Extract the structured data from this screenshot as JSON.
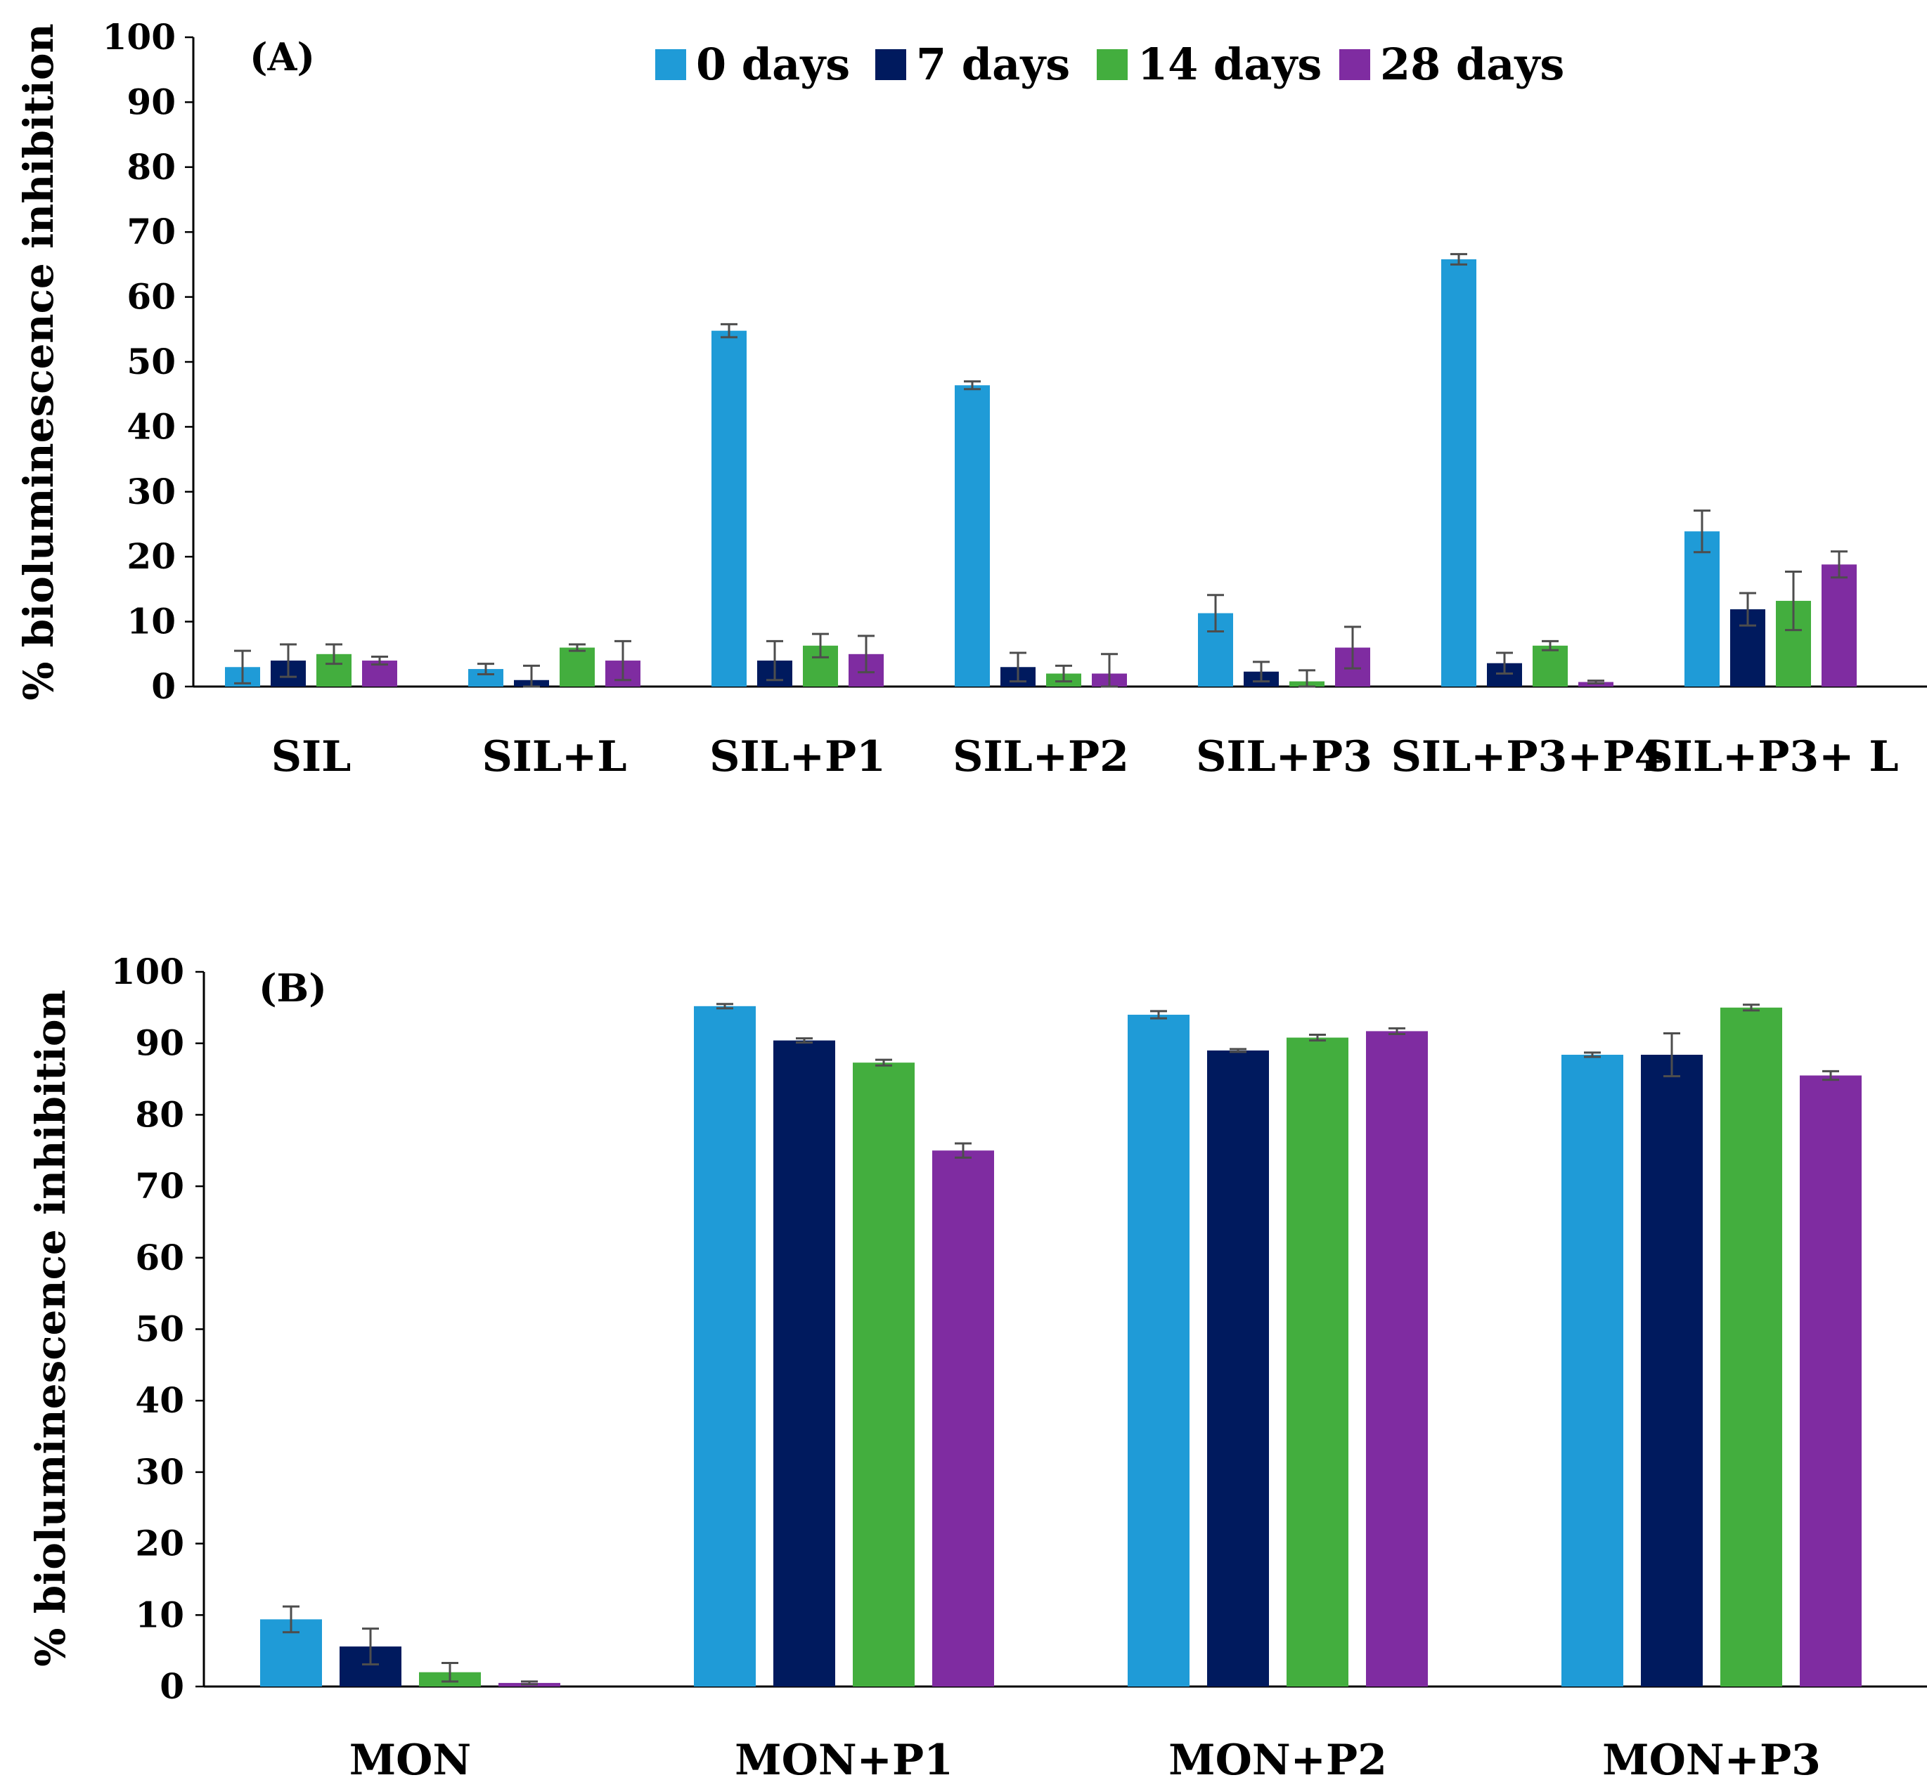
{
  "legend": {
    "series": [
      {
        "name": "0 days",
        "color": "#1F9BD7"
      },
      {
        "name": "7 days",
        "color": "#001A5E"
      },
      {
        "name": "14 days",
        "color": "#43AE3E"
      },
      {
        "name": "28 days",
        "color": "#7F2CA1"
      }
    ]
  },
  "chart_data": [
    {
      "type": "bar",
      "title": "(A)",
      "ylabel": "% bioluminescence inhibition",
      "xlabel": "",
      "ylim": [
        0,
        100
      ],
      "yticks": [
        0,
        10,
        20,
        30,
        40,
        50,
        60,
        70,
        80,
        90,
        100
      ],
      "categories": [
        "SIL",
        "SIL+L",
        "SIL+P1",
        "SIL+P2",
        "SIL+P3",
        "SIL+P3+P4",
        "SIL+P3+ L"
      ],
      "series": [
        {
          "name": "0 days",
          "values": [
            3.0,
            2.7,
            54.8,
            46.4,
            11.3,
            65.8,
            23.9
          ],
          "errors": [
            2.5,
            0.8,
            1.0,
            0.6,
            2.8,
            0.8,
            3.2
          ]
        },
        {
          "name": "7 days",
          "values": [
            4.0,
            1.0,
            4.0,
            3.0,
            2.3,
            3.6,
            11.9
          ],
          "errors": [
            2.5,
            2.2,
            3.0,
            2.2,
            1.5,
            1.6,
            2.5
          ]
        },
        {
          "name": "14 days",
          "values": [
            5.0,
            6.0,
            6.3,
            2.0,
            0.8,
            6.3,
            13.2
          ],
          "errors": [
            1.5,
            0.5,
            1.8,
            1.2,
            1.7,
            0.7,
            4.5
          ]
        },
        {
          "name": "28 days",
          "values": [
            4.0,
            4.0,
            5.0,
            2.0,
            6.0,
            0.7,
            18.8
          ],
          "errors": [
            0.6,
            3.0,
            2.8,
            3.0,
            3.2,
            0.2,
            2.0
          ]
        }
      ]
    },
    {
      "type": "bar",
      "title": "(B)",
      "ylabel": "% bioluminescence inhibition",
      "xlabel": "",
      "ylim": [
        0,
        100
      ],
      "yticks": [
        0,
        10,
        20,
        30,
        40,
        50,
        60,
        70,
        80,
        90,
        100
      ],
      "categories": [
        "MON",
        "MON+P1",
        "MON+P2",
        "MON+P3"
      ],
      "series": [
        {
          "name": "0 days",
          "values": [
            9.4,
            95.2,
            94.0,
            88.4
          ],
          "errors": [
            1.8,
            0.3,
            0.5,
            0.3
          ]
        },
        {
          "name": "7 days",
          "values": [
            5.6,
            90.4,
            89.0,
            88.4
          ],
          "errors": [
            2.5,
            0.3,
            0.2,
            3.0
          ]
        },
        {
          "name": "14 days",
          "values": [
            2.0,
            87.3,
            90.8,
            95.0
          ],
          "errors": [
            1.3,
            0.4,
            0.4,
            0.4
          ]
        },
        {
          "name": "28 days",
          "values": [
            0.5,
            75.0,
            91.7,
            85.5
          ],
          "errors": [
            0.2,
            1.0,
            0.4,
            0.6
          ]
        }
      ]
    }
  ]
}
